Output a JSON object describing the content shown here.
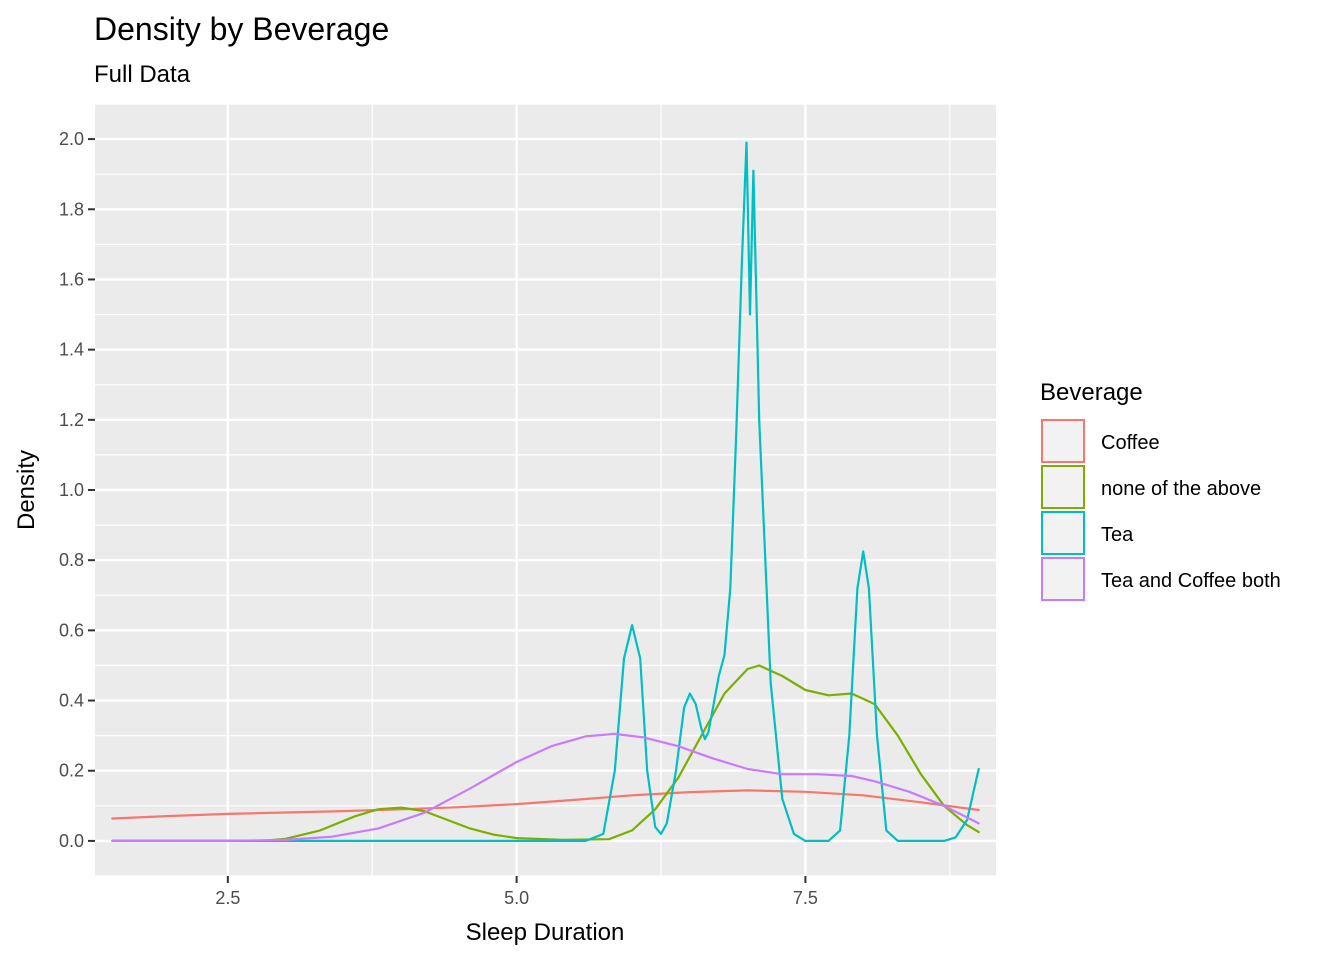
{
  "chart_data": {
    "type": "line",
    "title": "Density by Beverage",
    "subtitle": "Full Data",
    "xlabel": "Sleep Duration",
    "ylabel": "Density",
    "xlim": [
      1.35,
      9.15
    ],
    "ylim": [
      -0.1,
      2.1
    ],
    "x_ticks": [
      2.5,
      5.0,
      7.5
    ],
    "x_tick_labels": [
      "2.5",
      "5.0",
      "7.5"
    ],
    "y_ticks": [
      0.0,
      0.2,
      0.4,
      0.6,
      0.8,
      1.0,
      1.2,
      1.4,
      1.6,
      1.8,
      2.0
    ],
    "y_tick_labels": [
      "0.0",
      "0.2",
      "0.4",
      "0.6",
      "0.8",
      "1.0",
      "1.2",
      "1.4",
      "1.6",
      "1.8",
      "2.0"
    ],
    "grid": true,
    "legend": {
      "title": "Beverage",
      "position": "right"
    },
    "series": [
      {
        "name": "Coffee",
        "color": "#F8766D",
        "points": [
          [
            1.5,
            0.064
          ],
          [
            2.0,
            0.071
          ],
          [
            2.5,
            0.077
          ],
          [
            3.0,
            0.081
          ],
          [
            3.5,
            0.085
          ],
          [
            4.0,
            0.09
          ],
          [
            4.5,
            0.096
          ],
          [
            5.0,
            0.105
          ],
          [
            5.5,
            0.117
          ],
          [
            6.0,
            0.13
          ],
          [
            6.5,
            0.139
          ],
          [
            7.0,
            0.144
          ],
          [
            7.5,
            0.14
          ],
          [
            8.0,
            0.13
          ],
          [
            8.5,
            0.11
          ],
          [
            9.0,
            0.088
          ]
        ]
      },
      {
        "name": "none of the above",
        "color": "#7CAE00",
        "points": [
          [
            1.5,
            0.0
          ],
          [
            2.8,
            0.0
          ],
          [
            3.0,
            0.006
          ],
          [
            3.3,
            0.03
          ],
          [
            3.6,
            0.07
          ],
          [
            3.8,
            0.09
          ],
          [
            4.0,
            0.095
          ],
          [
            4.2,
            0.085
          ],
          [
            4.4,
            0.06
          ],
          [
            4.6,
            0.035
          ],
          [
            4.8,
            0.018
          ],
          [
            5.0,
            0.008
          ],
          [
            5.4,
            0.003
          ],
          [
            5.8,
            0.005
          ],
          [
            6.0,
            0.03
          ],
          [
            6.2,
            0.09
          ],
          [
            6.4,
            0.18
          ],
          [
            6.6,
            0.3
          ],
          [
            6.8,
            0.42
          ],
          [
            7.0,
            0.49
          ],
          [
            7.1,
            0.5
          ],
          [
            7.3,
            0.47
          ],
          [
            7.5,
            0.43
          ],
          [
            7.7,
            0.415
          ],
          [
            7.9,
            0.42
          ],
          [
            8.1,
            0.39
          ],
          [
            8.3,
            0.3
          ],
          [
            8.5,
            0.19
          ],
          [
            8.7,
            0.1
          ],
          [
            8.9,
            0.045
          ],
          [
            9.0,
            0.025
          ]
        ]
      },
      {
        "name": "Tea",
        "color": "#00BFC4",
        "points": [
          [
            1.5,
            0.0
          ],
          [
            5.6,
            0.0
          ],
          [
            5.75,
            0.02
          ],
          [
            5.85,
            0.2
          ],
          [
            5.93,
            0.52
          ],
          [
            6.0,
            0.615
          ],
          [
            6.07,
            0.52
          ],
          [
            6.13,
            0.2
          ],
          [
            6.2,
            0.04
          ],
          [
            6.25,
            0.02
          ],
          [
            6.3,
            0.05
          ],
          [
            6.38,
            0.2
          ],
          [
            6.45,
            0.38
          ],
          [
            6.5,
            0.42
          ],
          [
            6.55,
            0.39
          ],
          [
            6.6,
            0.32
          ],
          [
            6.63,
            0.29
          ],
          [
            6.66,
            0.31
          ],
          [
            6.7,
            0.38
          ],
          [
            6.75,
            0.47
          ],
          [
            6.8,
            0.53
          ],
          [
            6.85,
            0.72
          ],
          [
            6.9,
            1.15
          ],
          [
            6.95,
            1.65
          ],
          [
            6.99,
            1.99
          ],
          [
            7.02,
            1.5
          ],
          [
            7.05,
            1.91
          ],
          [
            7.1,
            1.2
          ],
          [
            7.2,
            0.45
          ],
          [
            7.3,
            0.12
          ],
          [
            7.4,
            0.02
          ],
          [
            7.5,
            0.0
          ],
          [
            7.7,
            0.0
          ],
          [
            7.8,
            0.03
          ],
          [
            7.88,
            0.3
          ],
          [
            7.95,
            0.72
          ],
          [
            8.0,
            0.825
          ],
          [
            8.05,
            0.72
          ],
          [
            8.12,
            0.3
          ],
          [
            8.2,
            0.03
          ],
          [
            8.3,
            0.0
          ],
          [
            8.7,
            0.0
          ],
          [
            8.8,
            0.01
          ],
          [
            8.9,
            0.06
          ],
          [
            9.0,
            0.205
          ]
        ]
      },
      {
        "name": "Tea and Coffee both",
        "color": "#C77CFF",
        "points": [
          [
            1.5,
            0.0
          ],
          [
            2.5,
            0.0
          ],
          [
            3.0,
            0.003
          ],
          [
            3.4,
            0.012
          ],
          [
            3.8,
            0.035
          ],
          [
            4.2,
            0.08
          ],
          [
            4.6,
            0.15
          ],
          [
            5.0,
            0.225
          ],
          [
            5.3,
            0.27
          ],
          [
            5.6,
            0.298
          ],
          [
            5.85,
            0.305
          ],
          [
            6.1,
            0.295
          ],
          [
            6.4,
            0.27
          ],
          [
            6.7,
            0.235
          ],
          [
            7.0,
            0.205
          ],
          [
            7.3,
            0.19
          ],
          [
            7.6,
            0.19
          ],
          [
            7.9,
            0.185
          ],
          [
            8.1,
            0.17
          ],
          [
            8.4,
            0.14
          ],
          [
            8.7,
            0.1
          ],
          [
            9.0,
            0.05
          ]
        ]
      }
    ]
  }
}
